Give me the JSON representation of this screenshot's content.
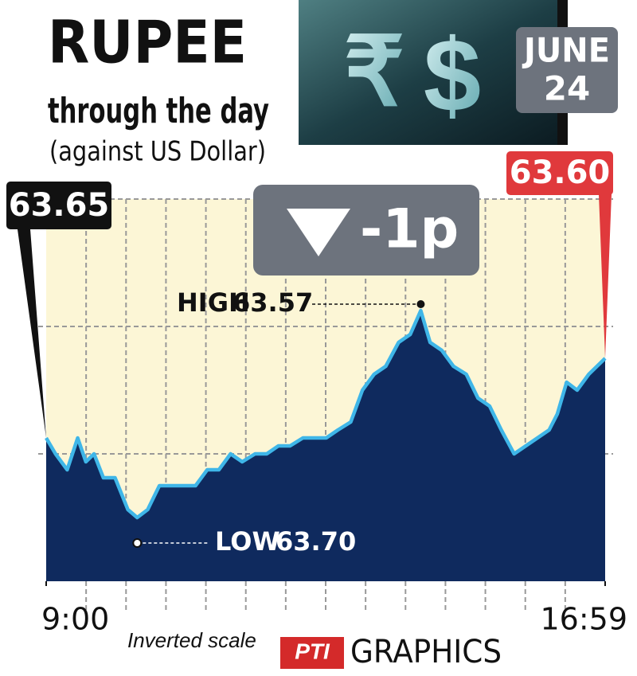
{
  "chart_data": {
    "type": "line",
    "title": "RUPEE",
    "subtitle": "through the day",
    "axis_note": "(against US Dollar)",
    "date": {
      "month": "JUNE",
      "day": 24
    },
    "symbols": [
      "₹",
      "$"
    ],
    "change": {
      "value": -1,
      "label": "-1p"
    },
    "open": {
      "value": 63.65,
      "label": "63.65"
    },
    "close": {
      "value": 63.6,
      "label": "63.60"
    },
    "high": {
      "name": "HIGH",
      "value": 63.57,
      "label": "63.57"
    },
    "low": {
      "name": "LOW",
      "value": 63.7,
      "label": "63.70"
    },
    "scale_note": "Inverted scale",
    "source": {
      "logo": "PTI",
      "name": "GRAPHICS"
    },
    "inverted": true,
    "grid": true,
    "xlim": [
      540,
      1019
    ],
    "xticks": [
      {
        "value": 540,
        "label": "9:00"
      },
      {
        "value": 1019,
        "label": "16:59"
      }
    ],
    "ylim": [
      63.5,
      63.74
    ],
    "series": [
      {
        "color": "#3fb6e8",
        "fill": "#0f2a5e",
        "x": [
          540,
          548,
          558,
          567,
          574,
          581,
          589,
          599,
          610,
          618,
          627,
          637,
          647,
          657,
          668,
          678,
          688,
          698,
          708,
          719,
          729,
          739,
          749,
          760,
          770,
          780,
          790,
          801,
          811,
          821,
          831,
          842,
          852,
          861,
          869,
          879,
          889,
          900,
          910,
          920,
          930,
          941,
          951,
          961,
          971,
          978,
          986,
          995,
          1005,
          1019
        ],
        "values": [
          63.65,
          63.66,
          63.67,
          63.65,
          63.665,
          63.66,
          63.675,
          63.675,
          63.695,
          63.7,
          63.695,
          63.68,
          63.68,
          63.68,
          63.68,
          63.67,
          63.67,
          63.66,
          63.665,
          63.66,
          63.66,
          63.655,
          63.655,
          63.65,
          63.65,
          63.65,
          63.645,
          63.64,
          63.62,
          63.61,
          63.605,
          63.59,
          63.585,
          63.57,
          63.59,
          63.595,
          63.605,
          63.61,
          63.625,
          63.63,
          63.645,
          63.66,
          63.655,
          63.65,
          63.645,
          63.635,
          63.615,
          63.62,
          63.61,
          63.6
        ]
      }
    ]
  }
}
